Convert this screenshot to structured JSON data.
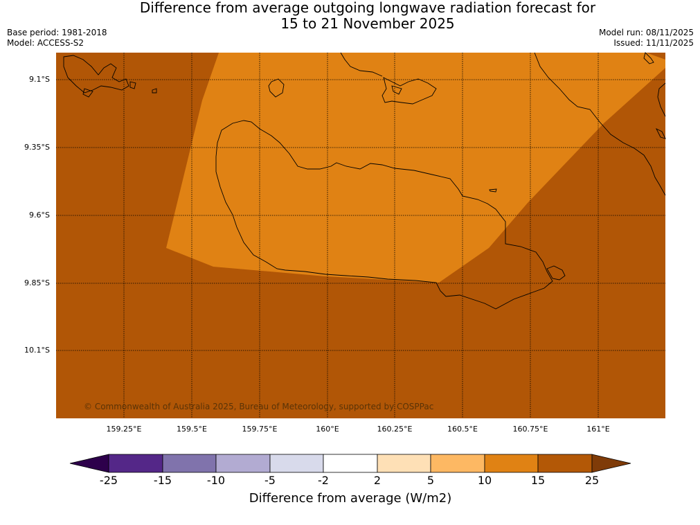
{
  "title": {
    "line1": "Difference from average outgoing longwave radiation forecast for",
    "line2": "15 to 21 November 2025"
  },
  "meta": {
    "base_period": "Base period: 1981-2018",
    "model": "Model: ACCESS-S2",
    "model_run": "Model run: 08/11/2025",
    "issued": "Issued: 11/11/2025"
  },
  "map": {
    "copyright": "© Commonwealth of Australia 2025, Bureau of Meteorology, supported by COSPPac",
    "lat_labels": [
      "9.1°S",
      "9.35°S",
      "9.6°S",
      "9.85°S",
      "10.1°S"
    ],
    "lon_labels": [
      "159.25°E",
      "159.5°E",
      "159.75°E",
      "160°E",
      "160.25°E",
      "160.5°E",
      "160.75°E",
      "161°E"
    ],
    "colors": {
      "anomaly_15_25": "#b15606",
      "anomaly_10_15": "#e08214",
      "coastline": "#000000"
    }
  },
  "colorbar": {
    "title": "Difference from average (W/m2)",
    "ticks": [
      "-25",
      "-15",
      "-10",
      "-5",
      "-2",
      "2",
      "5",
      "10",
      "15",
      "25"
    ],
    "colors": [
      "#2d004b",
      "#542788",
      "#8073ac",
      "#b2abd2",
      "#d8daeb",
      "#ffffff",
      "#fee0b6",
      "#fdb863",
      "#e08214",
      "#b35806",
      "#7f3b08"
    ]
  }
}
